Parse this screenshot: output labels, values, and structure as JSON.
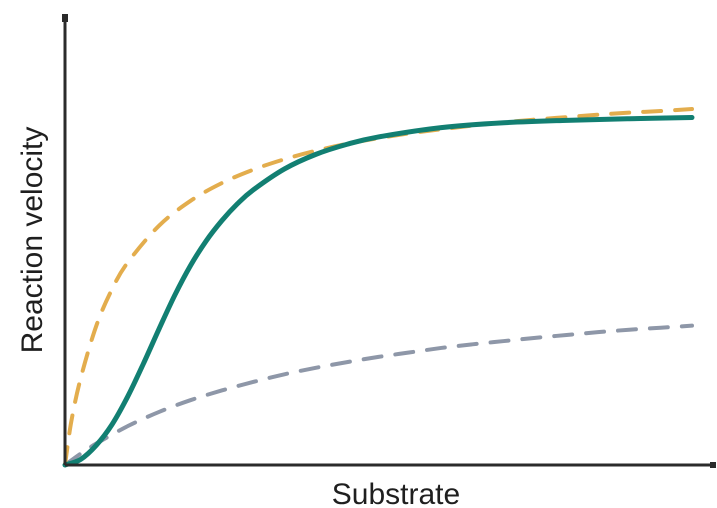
{
  "chart_data": {
    "type": "line",
    "xlabel": "Substrate",
    "ylabel": "Reaction velocity",
    "xlim": [
      0,
      10
    ],
    "ylim": [
      0,
      10
    ],
    "grid": false,
    "legend": "none",
    "series": [
      {
        "style": "dashed",
        "color": "#e3ad4d",
        "x": [
          0,
          0.1,
          0.25,
          0.5,
          0.75,
          1,
          1.5,
          2,
          2.5,
          3,
          3.5,
          4,
          4.5,
          5,
          5.5,
          6,
          6.5,
          7,
          7.5,
          8,
          8.5,
          9,
          9.5,
          10
        ],
        "y": [
          0,
          1.07,
          2.14,
          3.44,
          4.34,
          5.0,
          5.91,
          6.52,
          6.96,
          7.29,
          7.55,
          7.76,
          7.93,
          8.07,
          8.19,
          8.29,
          8.38,
          8.46,
          8.53,
          8.59,
          8.65,
          8.7,
          8.74,
          8.79
        ]
      },
      {
        "style": "solid",
        "color": "#127f72",
        "x": [
          0,
          0.25,
          0.5,
          0.75,
          1,
          1.25,
          1.5,
          1.75,
          2,
          2.25,
          2.5,
          2.75,
          3,
          3.5,
          4,
          4.5,
          5,
          6,
          7,
          8,
          9,
          10
        ],
        "y": [
          0,
          0.14,
          0.49,
          1.0,
          1.69,
          2.5,
          3.36,
          4.19,
          4.92,
          5.53,
          6.03,
          6.45,
          6.79,
          7.31,
          7.67,
          7.92,
          8.1,
          8.33,
          8.45,
          8.51,
          8.55,
          8.58
        ]
      },
      {
        "style": "dashed",
        "color": "#8e97a8",
        "x": [
          0,
          0.25,
          0.5,
          1,
          1.5,
          2,
          2.5,
          3,
          3.5,
          4,
          4.5,
          5,
          5.5,
          6,
          6.5,
          7,
          7.5,
          8,
          8.5,
          9,
          9.5,
          10
        ],
        "y": [
          0,
          0.28,
          0.53,
          0.96,
          1.31,
          1.6,
          1.84,
          2.05,
          2.24,
          2.4,
          2.54,
          2.67,
          2.78,
          2.89,
          2.98,
          3.06,
          3.14,
          3.21,
          3.28,
          3.34,
          3.39,
          3.44
        ]
      }
    ]
  }
}
